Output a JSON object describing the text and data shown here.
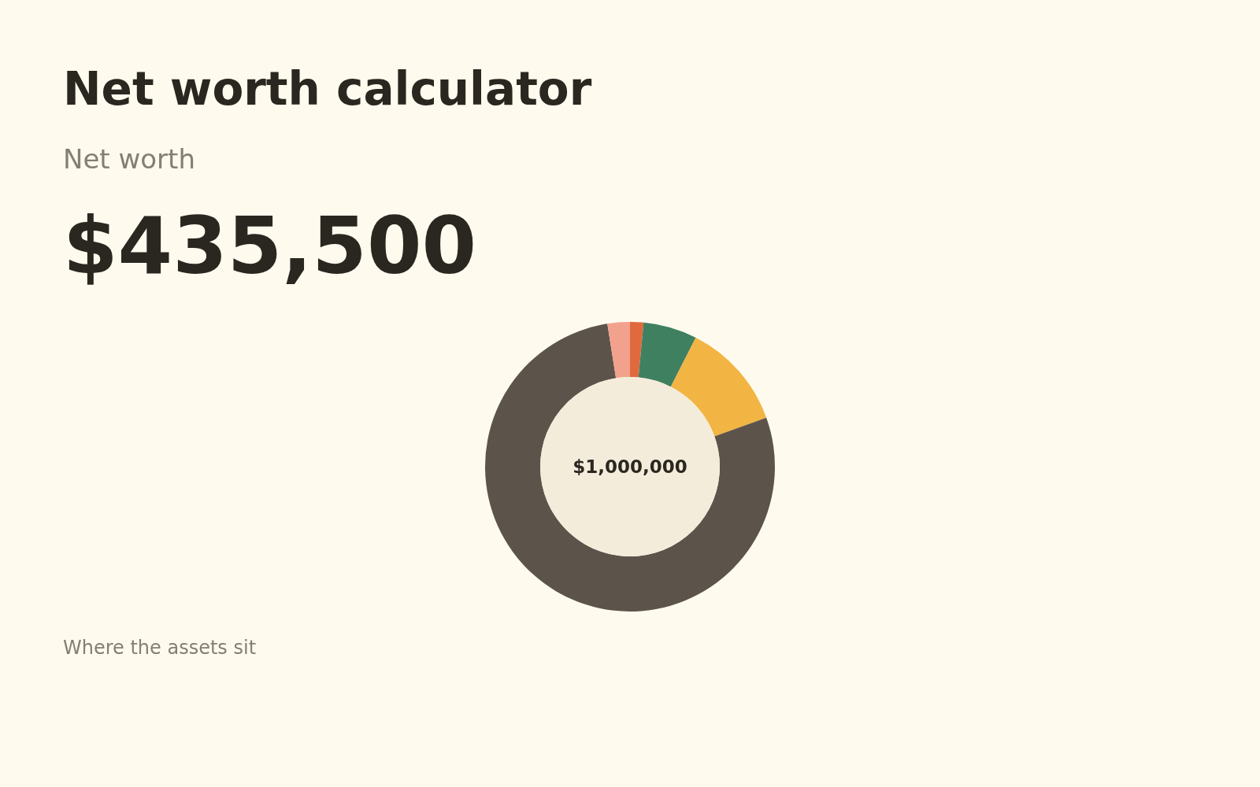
{
  "chart_data": {
    "type": "donut",
    "title": "Net worth calculator",
    "subtitle": "Net worth",
    "annotations": [
      "$435,500",
      "$1,000,000",
      "Where the assets sit"
    ],
    "categories": [
      null,
      null,
      null,
      null,
      null
    ],
    "values": [
      1.5,
      6,
      12,
      78,
      2.5
    ],
    "colors": [
      "#e06a3e",
      "#3f8060",
      "#f2b443",
      "#5c544a",
      "#f2a18c"
    ],
    "legend": false
  }
}
